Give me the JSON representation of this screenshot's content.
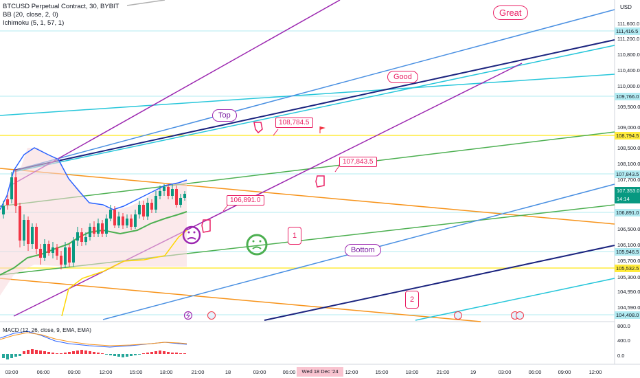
{
  "legend": {
    "title": "BTCUSD Perpetual Contract, 30, BYBIT",
    "bb": "BB (20, close, 2, 0)",
    "ichimoku": "Ichimoku (5, 1, 57, 1)"
  },
  "currency": "USD",
  "price_axis": [
    "111,600.0",
    "111,200.0",
    "110,800.0",
    "110,400.0",
    "110,000.0",
    "109,500.0",
    "109,000.0",
    "108,500.0",
    "108,100.0",
    "107,700.0",
    "106,500.0",
    "106,100.0",
    "105,700.0",
    "105,300.0",
    "104,950.0",
    "104,590.0"
  ],
  "price_labels": {
    "p111416": "111,416.5",
    "p109766": "109,766.0",
    "p108794": "108,794.5",
    "p107843": "107,843.5",
    "p106891": "106,891.0",
    "p105946": "105,946.5",
    "p105532": "105,532.5",
    "p104408": "104,408.0"
  },
  "current_price": {
    "value": "107,353.0",
    "countdown": "14:14"
  },
  "macd_axis": [
    "800.0",
    "400.0",
    "0.0"
  ],
  "macd_legend": "MACD (12, 26, close, 9, EMA, EMA)",
  "time_axis": [
    "03:00",
    "06:00",
    "09:00",
    "12:00",
    "15:00",
    "18:00",
    "21:00",
    "18",
    "03:00",
    "06:00",
    "09:00",
    "12:00",
    "15:00",
    "18:00",
    "21:00",
    "19",
    "03:00",
    "06:00",
    "09:00",
    "12:00"
  ],
  "time_highlight": "Wed 18 Dec '24",
  "callouts": {
    "c1": "108,784.5",
    "c2": "107,843.5",
    "c3": "106,891.0"
  },
  "bubbles": {
    "great": "Great",
    "good": "Good",
    "top": "Top",
    "bottom": "Bottom",
    "one": "1",
    "two": "2"
  },
  "colors": {
    "orange": "#f7931a",
    "purple": "#9c27b0",
    "blue": "#4a90e2",
    "navy": "#1a237e",
    "teal": "#26c6da",
    "green": "#4caf50",
    "yellow": "#ffeb3b",
    "pink": "#e91e63",
    "up": "#089981",
    "down": "#f23645"
  }
}
